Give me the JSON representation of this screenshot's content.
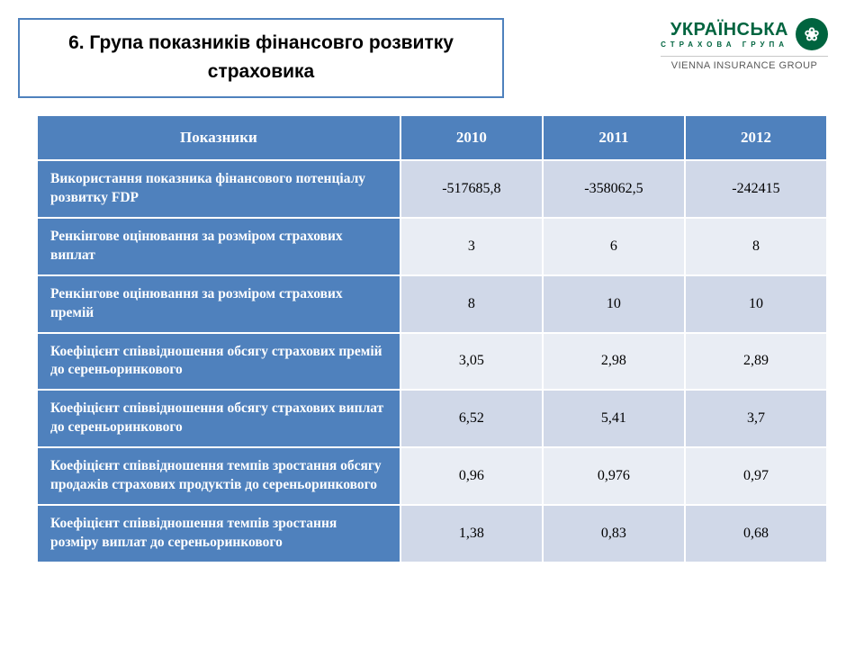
{
  "title": "6. Група показників фінансовго розвитку страховика",
  "logo": {
    "word": "УКРАЇНСЬКА",
    "sub": "СТРАХОВА ГРУПА",
    "icon_glyph": "❀",
    "sub_brand": "VIENNA INSURANCE GROUP",
    "brand_color": "#00643f"
  },
  "table": {
    "type": "table",
    "header_bg": "#4f81bd",
    "header_fg": "#ffffff",
    "row_label_bg": "#4f81bd",
    "row_label_fg": "#ffffff",
    "row_odd_bg": "#d0d8e8",
    "row_even_bg": "#e9edf4",
    "border_color": "#ffffff",
    "columns": [
      "Показники",
      "2010",
      "2011",
      "2012"
    ],
    "rows": [
      {
        "label": "Використання показника фінансового потенціалу розвитку FDP",
        "values": [
          "-517685,8",
          "-358062,5",
          "-242415"
        ]
      },
      {
        "label": "Ренкінгове оцінювання за розміром страхових виплат",
        "values": [
          "3",
          "6",
          "8"
        ]
      },
      {
        "label": "Ренкінгове оцінювання за розміром страхових премій",
        "values": [
          "8",
          "10",
          "10"
        ]
      },
      {
        "label": "Коефіцієнт співвідношення обсягу страхових премій до сереньоринкового",
        "values": [
          "3,05",
          "2,98",
          "2,89"
        ]
      },
      {
        "label": "Коефіцієнт співвідношення обсягу страхових виплат до сереньоринкового",
        "values": [
          "6,52",
          "5,41",
          "3,7"
        ]
      },
      {
        "label": "Коефіцієнт співвідношення темпів зростання обсягу продажів страхових продуктів до сереньоринкового",
        "values": [
          "0,96",
          "0,976",
          "0,97"
        ]
      },
      {
        "label": "Коефіцієнт співвідношення темпів зростання розміру виплат  до сереньоринкового",
        "values": [
          "1,38",
          "0,83",
          "0,68"
        ]
      }
    ]
  }
}
